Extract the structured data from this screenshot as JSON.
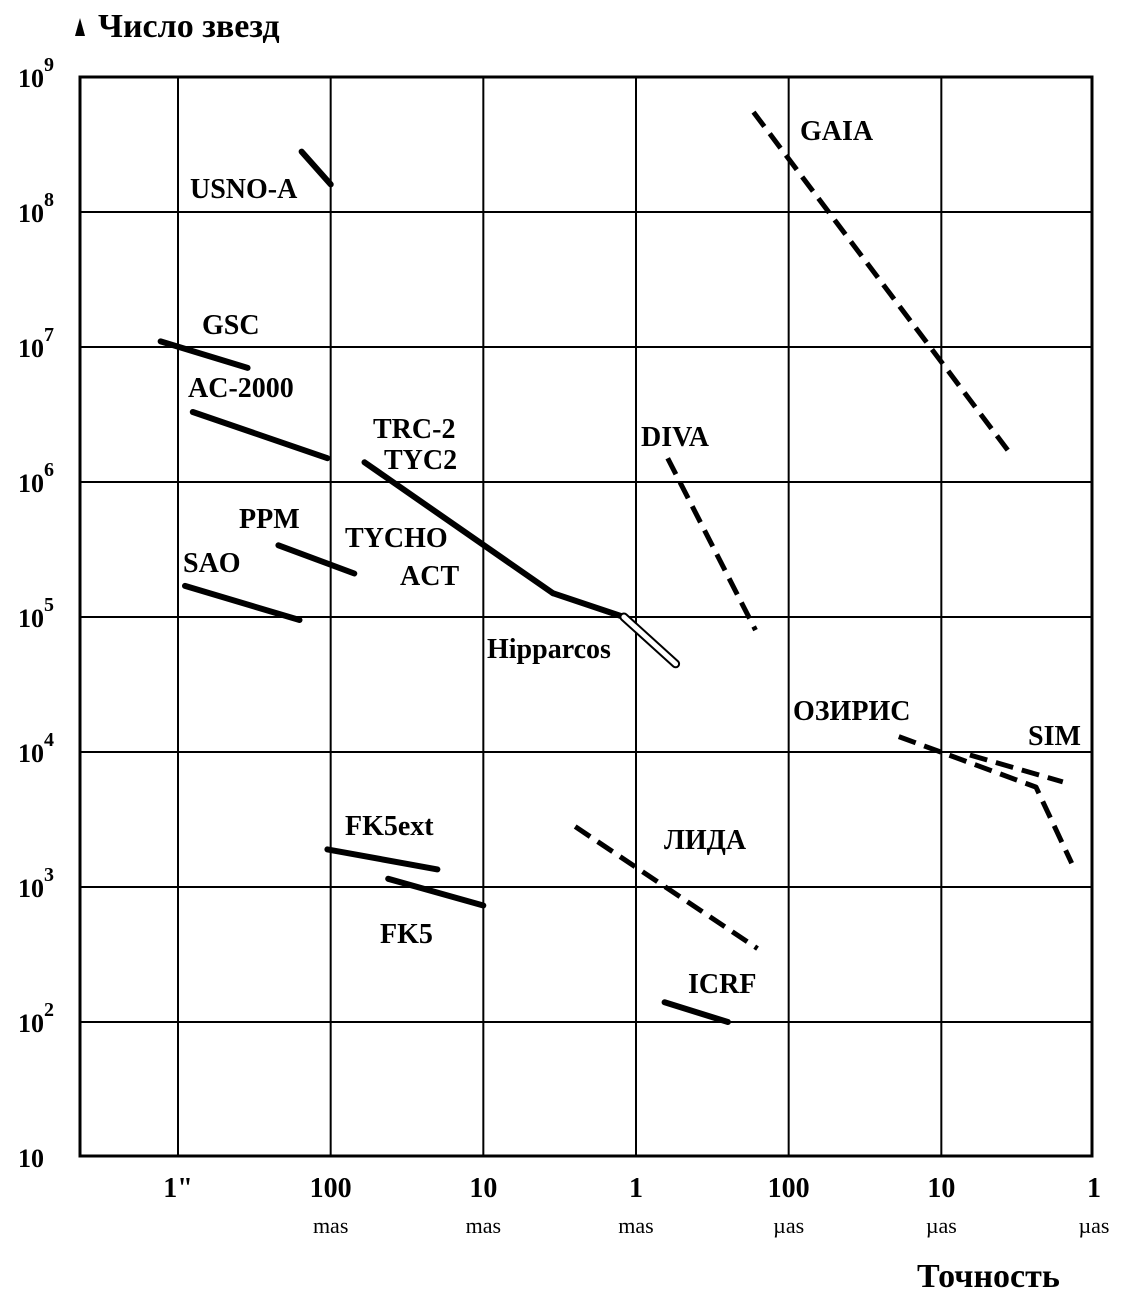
{
  "chart_data": {
    "type": "line",
    "title": "",
    "ylabel": "Число звезд",
    "xlabel": "Точность",
    "y_scale": "log",
    "ylim": [
      10,
      1000000000
    ],
    "yticks": [
      {
        "base": "10",
        "exp": "9"
      },
      {
        "base": "10",
        "exp": "8"
      },
      {
        "base": "10",
        "exp": "7"
      },
      {
        "base": "10",
        "exp": "6"
      },
      {
        "base": "10",
        "exp": "5"
      },
      {
        "base": "10",
        "exp": "4"
      },
      {
        "base": "10",
        "exp": "3"
      },
      {
        "base": "10",
        "exp": "2"
      },
      {
        "base": "10",
        "exp": ""
      }
    ],
    "x_unit": "precision (mas)",
    "x_scale": "log, decreasing to the right",
    "xlim": [
      1600,
      0.001
    ],
    "xticks": [
      {
        "value": "1\"",
        "unit": ""
      },
      {
        "value": "100",
        "unit": "mas"
      },
      {
        "value": "10",
        "unit": "mas"
      },
      {
        "value": "1",
        "unit": "mas"
      },
      {
        "value": "100",
        "unit": "µas"
      },
      {
        "value": "10",
        "unit": "µas"
      },
      {
        "value": "1",
        "unit": "µas"
      }
    ],
    "grid": true,
    "series": [
      {
        "name": "USNO-A",
        "style": "solid",
        "x": [
          155,
          100
        ],
        "y": [
          280000000,
          160000000
        ]
      },
      {
        "name": "GSC",
        "style": "solid",
        "x": [
          1300,
          350
        ],
        "y": [
          11000000,
          7000000
        ]
      },
      {
        "name": "AC-2000",
        "style": "solid",
        "x": [
          800,
          105
        ],
        "y": [
          3300000,
          1500000
        ]
      },
      {
        "name": "TRC-2",
        "style": "solid",
        "x": [
          60,
          3.5
        ],
        "y": [
          1400000,
          150000
        ]
      },
      {
        "name": "TYC2",
        "style": "solid",
        "x": [
          60,
          3.5
        ],
        "y": [
          1400000,
          150000
        ]
      },
      {
        "name": "TYCHO",
        "style": "solid",
        "x": [
          3.5,
          1.2
        ],
        "y": [
          150000,
          100000
        ]
      },
      {
        "name": "ACT",
        "style": "solid",
        "x": [
          3.5,
          1.2
        ],
        "y": [
          150000,
          100000
        ]
      },
      {
        "name": "Hipparcos",
        "style": "hollow",
        "x": [
          1.2,
          0.55
        ],
        "y": [
          100000,
          45000
        ]
      },
      {
        "name": "PPM",
        "style": "solid",
        "x": [
          220,
          70
        ],
        "y": [
          340000,
          210000
        ]
      },
      {
        "name": "SAO",
        "style": "solid",
        "x": [
          900,
          160
        ],
        "y": [
          170000,
          95000
        ]
      },
      {
        "name": "DIVA",
        "style": "dashed",
        "x": [
          0.62,
          0.165
        ],
        "y": [
          1500000,
          80000
        ]
      },
      {
        "name": "GAIA",
        "style": "dashed",
        "x": [
          0.17,
          0.0035
        ],
        "y": [
          550000000,
          1600000
        ]
      },
      {
        "name": "ОЗИРИС",
        "style": "dashed",
        "x": [
          0.019,
          0.0024,
          0.0014
        ],
        "y": [
          13000,
          5500,
          1500
        ]
      },
      {
        "name": "SIM",
        "style": "dashed",
        "x": [
          0.0065,
          0.0016
        ],
        "y": [
          9500,
          6000
        ]
      },
      {
        "name": "ЛИДА",
        "style": "dashed",
        "x": [
          2.5,
          0.16
        ],
        "y": [
          2800,
          350
        ]
      },
      {
        "name": "ICRF",
        "style": "solid",
        "x": [
          0.65,
          0.25
        ],
        "y": [
          140,
          100
        ]
      },
      {
        "name": "FK5ext",
        "style": "solid",
        "x": [
          105,
          20
        ],
        "y": [
          1900,
          1350
        ]
      },
      {
        "name": "FK5",
        "style": "solid",
        "x": [
          42,
          10
        ],
        "y": [
          1150,
          730
        ]
      }
    ],
    "labels": [
      {
        "text": "USNO-A"
      },
      {
        "text": "GSC"
      },
      {
        "text": "AC-2000"
      },
      {
        "text": "TRC-2"
      },
      {
        "text": "TYC2"
      },
      {
        "text": "PPM"
      },
      {
        "text": "TYCHO"
      },
      {
        "text": "SAO"
      },
      {
        "text": "ACT"
      },
      {
        "text": "Hipparcos"
      },
      {
        "text": "DIVA"
      },
      {
        "text": "GAIA"
      },
      {
        "text": "ОЗИРИС"
      },
      {
        "text": "SIM"
      },
      {
        "text": "FK5ext"
      },
      {
        "text": "ЛИДА"
      },
      {
        "text": "FK5"
      },
      {
        "text": "ICRF"
      }
    ]
  }
}
